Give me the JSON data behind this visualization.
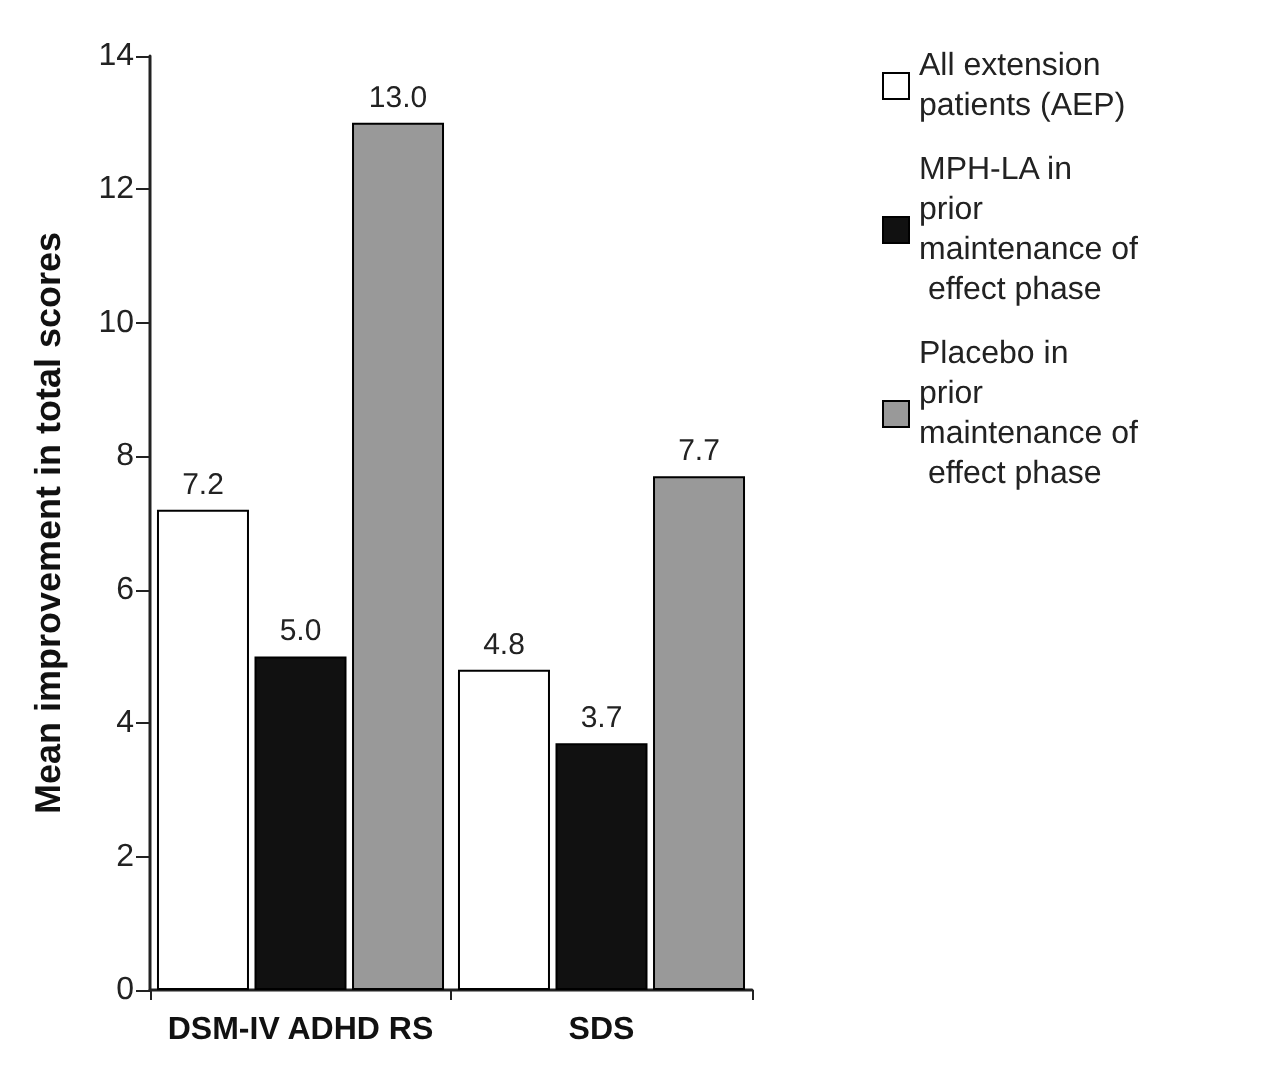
{
  "chart_data": {
    "type": "bar",
    "ylabel": "Mean improvement in total scores",
    "categories": [
      "DSM-IV ADHD RS",
      "SDS"
    ],
    "series": [
      {
        "name": "All extension patients (AEP)",
        "color": "#ffffff",
        "values": [
          7.2,
          4.8
        ],
        "value_labels": [
          "7.2",
          "4.8"
        ]
      },
      {
        "name": "MPH-LA in prior maintenance of effect phase",
        "color": "#111111",
        "values": [
          5,
          3.7
        ],
        "value_labels": [
          "5.0",
          "3.7"
        ]
      },
      {
        "name": "Placebo in prior maintenance of effect phase",
        "color": "#999999",
        "values": [
          13,
          7.7
        ],
        "value_labels": [
          "13.0",
          "7.7"
        ]
      }
    ],
    "ylim": [
      0,
      14
    ],
    "yticks": [
      0,
      2,
      4,
      6,
      8,
      10,
      12,
      14
    ],
    "grid": false,
    "legend": "top right"
  }
}
